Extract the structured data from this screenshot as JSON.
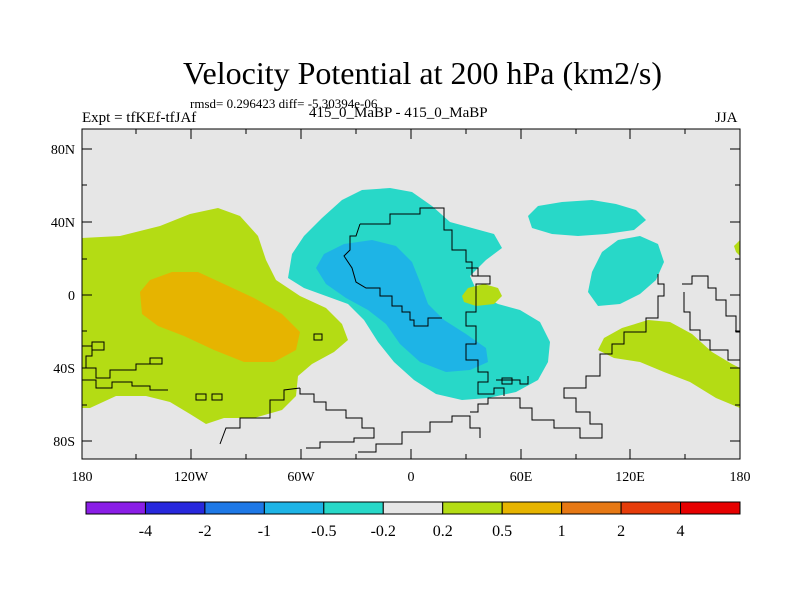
{
  "title": "Velocity Potential at 200 hPa (km2/s)",
  "stats": "rmsd= 0.296423 diff= -5.30394e-06",
  "expt": "Expt = tfKEf-tfJAf",
  "period_label": "415_0_MaBP - 415_0_MaBP",
  "season": "JJA",
  "axes": {
    "y_ticks": [
      "80N",
      "40N",
      "0",
      "40S",
      "80S"
    ],
    "x_ticks": [
      "180",
      "120W",
      "60W",
      "0",
      "60E",
      "120E",
      "180"
    ]
  },
  "colorbar": {
    "colors": [
      "#8a1ee6",
      "#2828dc",
      "#1e78e6",
      "#1eb4e6",
      "#28d8c8",
      "#e6e6e6",
      "#b4dc14",
      "#e6b400",
      "#e67814",
      "#e63c0a",
      "#e60000"
    ],
    "labels": [
      "-4",
      "-2",
      "-1",
      "-0.5",
      "-0.2",
      "0.2",
      "0.5",
      "1",
      "2",
      "4"
    ]
  },
  "map_colors": {
    "background": "#e6e6e6",
    "neg_light": "#28d8c8",
    "neg_mid": "#1eb4e6",
    "pos_light": "#b4dc14",
    "pos_mid": "#e6b400"
  }
}
